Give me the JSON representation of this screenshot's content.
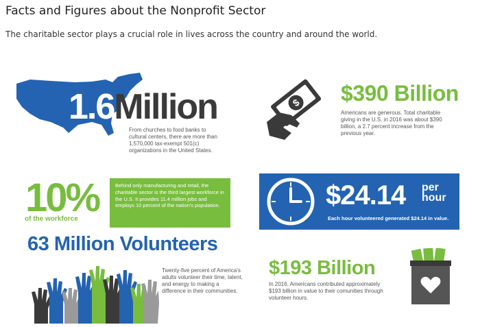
{
  "page": {
    "title": "Facts and Figures about the Nonprofit Sector",
    "intro": "The charitable sector plays a crucial role in lives across the country and around the world."
  },
  "colors": {
    "green": "#78bd3e",
    "blue": "#2363b2",
    "dark": "#3a3a3a",
    "gray": "#555555"
  },
  "icons": [
    "usa-map-icon",
    "money-hand-icon",
    "clock-icon",
    "raised-hands-icon",
    "donation-box-icon"
  ],
  "stats": {
    "organizations": {
      "number": "1.6",
      "word": "Million",
      "text": "From churches to food banks to cultural centers, there are more than 1,570,000 tax-exempt 501(c) organizations in the United States."
    },
    "giving": {
      "headline": "$390 Billion",
      "text": "Americans are generous. Total charitable giving in the U.S. in 2016 was about $390 billion, a 2.7 percent increase from the previous year."
    },
    "workforce": {
      "percent": "10%",
      "sub": "of the workforce",
      "text": "Behind only manufacturing and retail, the charitable sector is the third largest workforce in the U.S. It provides 11.4 million jobs and employs 10 percent of the nation's population."
    },
    "hourly": {
      "amount": "$24.14",
      "unit_line1": "per",
      "unit_line2": "hour",
      "caption": "Each hour volunteered generated $24.14 in value."
    },
    "volunteers": {
      "headline": "63 Million Volunteers",
      "text": "Twenty-five percent of America's adults volunteer their time, talent, and energy to making a difference in their communities."
    },
    "volunteer_value": {
      "headline": "$193 Billion",
      "text": "In 2016, Americans contributed approximately $193 billion in value to their comunities through volunteer hours."
    }
  }
}
